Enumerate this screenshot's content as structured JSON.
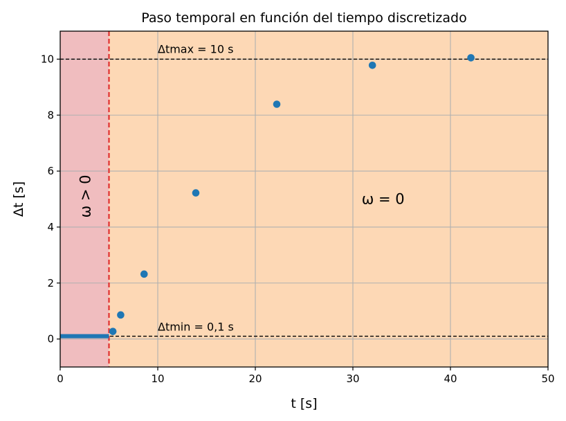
{
  "chart_data": {
    "type": "scatter",
    "title": "Paso temporal en función del tiempo discretizado",
    "xlabel": "t [s]",
    "ylabel": "Δt [s]",
    "xlim": [
      0,
      50
    ],
    "ylim": [
      -1,
      11
    ],
    "xticks": [
      0,
      10,
      20,
      30,
      40,
      50
    ],
    "yticks": [
      0,
      2,
      4,
      6,
      8,
      10
    ],
    "grid": true,
    "colors": {
      "points": "#1f77b4",
      "region_omega_pos": "#f0bdbf",
      "region_omega_zero": "#fdd8b5",
      "vline": "#e03030",
      "hline": "#000000"
    },
    "regions": [
      {
        "label": "ω > 0",
        "x_from": 0,
        "x_to": 5
      },
      {
        "label": "ω = 0",
        "x_from": 5,
        "x_to": 50
      }
    ],
    "vline_x": 5,
    "hlines": [
      {
        "y": 10,
        "label": "Δtmax = 10 s"
      },
      {
        "y": 0.1,
        "label": "Δtmin = 0,1 s"
      }
    ],
    "dense_segment": {
      "x_from": 0,
      "x_to": 5,
      "y": 0.1
    },
    "points": [
      {
        "x": 5.4,
        "y": 0.27
      },
      {
        "x": 6.2,
        "y": 0.86
      },
      {
        "x": 8.6,
        "y": 2.32
      },
      {
        "x": 13.9,
        "y": 5.22
      },
      {
        "x": 22.2,
        "y": 8.39
      },
      {
        "x": 32.0,
        "y": 9.78
      },
      {
        "x": 42.1,
        "y": 10.05
      }
    ]
  }
}
